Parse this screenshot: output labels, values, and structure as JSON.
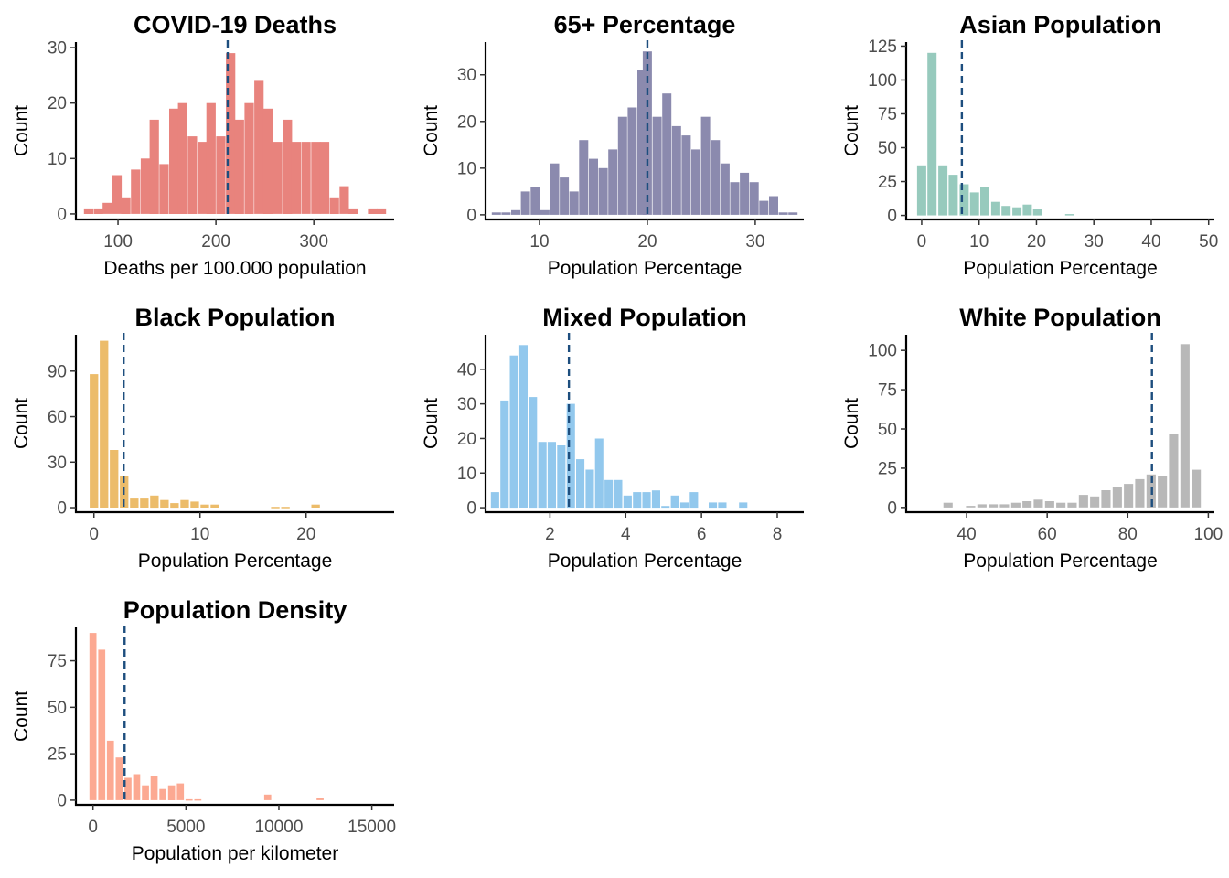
{
  "chart_data": [
    {
      "type": "bar",
      "title": "COVID-19 Deaths",
      "xlabel": "Deaths per 100.000 population",
      "ylabel": "Count",
      "color": "#E8837D",
      "xlim": [
        57,
        382
      ],
      "ylim": [
        -1,
        31
      ],
      "xticks": [
        100,
        200,
        300
      ],
      "yticks": [
        0,
        10,
        20,
        30
      ],
      "mean_line": 212,
      "bin_width": 9.5,
      "bins": [
        {
          "x": 70,
          "count": 1
        },
        {
          "x": 80,
          "count": 1
        },
        {
          "x": 89,
          "count": 2
        },
        {
          "x": 99,
          "count": 7
        },
        {
          "x": 108,
          "count": 3
        },
        {
          "x": 118,
          "count": 8
        },
        {
          "x": 128,
          "count": 10
        },
        {
          "x": 137,
          "count": 17
        },
        {
          "x": 147,
          "count": 9
        },
        {
          "x": 157,
          "count": 19
        },
        {
          "x": 166,
          "count": 20
        },
        {
          "x": 176,
          "count": 14
        },
        {
          "x": 186,
          "count": 13
        },
        {
          "x": 195,
          "count": 20
        },
        {
          "x": 205,
          "count": 14
        },
        {
          "x": 215,
          "count": 29
        },
        {
          "x": 224,
          "count": 17
        },
        {
          "x": 234,
          "count": 20
        },
        {
          "x": 244,
          "count": 24
        },
        {
          "x": 253,
          "count": 19
        },
        {
          "x": 263,
          "count": 13
        },
        {
          "x": 273,
          "count": 17
        },
        {
          "x": 282,
          "count": 13
        },
        {
          "x": 292,
          "count": 13
        },
        {
          "x": 302,
          "count": 13
        },
        {
          "x": 311,
          "count": 13
        },
        {
          "x": 321,
          "count": 3
        },
        {
          "x": 331,
          "count": 5
        },
        {
          "x": 340,
          "count": 1
        },
        {
          "x": 360,
          "count": 1
        },
        {
          "x": 369,
          "count": 1
        }
      ]
    },
    {
      "type": "bar",
      "title": "65+ Percentage",
      "xlabel": "Population Percentage",
      "ylabel": "Count",
      "color": "#8B8AAE",
      "xlim": [
        5,
        34.5
      ],
      "ylim": [
        -1,
        37
      ],
      "xticks": [
        10,
        20,
        30
      ],
      "yticks": [
        0,
        10,
        20,
        30
      ],
      "mean_line": 20,
      "bin_width": 0.85,
      "bins": [
        {
          "x": 6.0,
          "count": 0.5
        },
        {
          "x": 6.9,
          "count": 0.5
        },
        {
          "x": 7.8,
          "count": 1
        },
        {
          "x": 8.7,
          "count": 5
        },
        {
          "x": 9.6,
          "count": 6
        },
        {
          "x": 10.5,
          "count": 1
        },
        {
          "x": 11.4,
          "count": 11
        },
        {
          "x": 12.3,
          "count": 8
        },
        {
          "x": 13.2,
          "count": 5
        },
        {
          "x": 14.1,
          "count": 16
        },
        {
          "x": 15.0,
          "count": 12
        },
        {
          "x": 15.9,
          "count": 10
        },
        {
          "x": 16.8,
          "count": 14
        },
        {
          "x": 17.7,
          "count": 21
        },
        {
          "x": 18.6,
          "count": 23
        },
        {
          "x": 19.5,
          "count": 31
        },
        {
          "x": 20.0,
          "count": 35
        },
        {
          "x": 20.9,
          "count": 21
        },
        {
          "x": 21.8,
          "count": 26
        },
        {
          "x": 22.7,
          "count": 19
        },
        {
          "x": 23.6,
          "count": 17
        },
        {
          "x": 24.5,
          "count": 14
        },
        {
          "x": 25.4,
          "count": 21
        },
        {
          "x": 26.3,
          "count": 16
        },
        {
          "x": 27.2,
          "count": 11
        },
        {
          "x": 28.1,
          "count": 7
        },
        {
          "x": 29.0,
          "count": 9
        },
        {
          "x": 29.9,
          "count": 7
        },
        {
          "x": 30.8,
          "count": 3
        },
        {
          "x": 31.7,
          "count": 4
        },
        {
          "x": 32.6,
          "count": 0.5
        },
        {
          "x": 33.5,
          "count": 0.5
        }
      ]
    },
    {
      "type": "bar",
      "title": "Asian Population",
      "xlabel": "Population Percentage",
      "ylabel": "Count",
      "color": "#97CABD",
      "xlim": [
        -2.7,
        51
      ],
      "ylim": [
        -3,
        128
      ],
      "xticks": [
        0,
        10,
        20,
        30,
        40,
        50
      ],
      "yticks": [
        0,
        25,
        50,
        75,
        100,
        125
      ],
      "mean_line": 7,
      "bin_width": 1.6,
      "bins": [
        {
          "x": 0.0,
          "count": 37
        },
        {
          "x": 1.8,
          "count": 120
        },
        {
          "x": 3.7,
          "count": 37
        },
        {
          "x": 5.5,
          "count": 30
        },
        {
          "x": 7.4,
          "count": 23
        },
        {
          "x": 9.2,
          "count": 17
        },
        {
          "x": 11.0,
          "count": 21
        },
        {
          "x": 12.9,
          "count": 10
        },
        {
          "x": 14.7,
          "count": 7
        },
        {
          "x": 16.6,
          "count": 6
        },
        {
          "x": 18.4,
          "count": 8
        },
        {
          "x": 20.2,
          "count": 5
        },
        {
          "x": 25.8,
          "count": 1
        }
      ]
    },
    {
      "type": "bar",
      "title": "Black Population",
      "xlabel": "Population Percentage",
      "ylabel": "Count",
      "color": "#ECBC6A",
      "xlim": [
        -1.7,
        28.3
      ],
      "ylim": [
        -3,
        114
      ],
      "xticks": [
        0,
        10,
        20
      ],
      "yticks": [
        0,
        30,
        60,
        90
      ],
      "mean_line": 2.8,
      "bin_width": 0.8,
      "bins": [
        {
          "x": 0.0,
          "count": 88
        },
        {
          "x": 0.95,
          "count": 110
        },
        {
          "x": 1.9,
          "count": 38
        },
        {
          "x": 2.85,
          "count": 21
        },
        {
          "x": 3.8,
          "count": 6
        },
        {
          "x": 4.75,
          "count": 6
        },
        {
          "x": 5.7,
          "count": 8
        },
        {
          "x": 6.65,
          "count": 5
        },
        {
          "x": 7.6,
          "count": 3
        },
        {
          "x": 8.55,
          "count": 5
        },
        {
          "x": 9.5,
          "count": 4
        },
        {
          "x": 10.45,
          "count": 2
        },
        {
          "x": 11.4,
          "count": 2
        },
        {
          "x": 17.1,
          "count": 0.5
        },
        {
          "x": 18.05,
          "count": 0.5
        },
        {
          "x": 20.9,
          "count": 2
        }
      ]
    },
    {
      "type": "bar",
      "title": "Mixed Population",
      "xlabel": "Population Percentage",
      "ylabel": "Count",
      "color": "#92C8ED",
      "xlim": [
        0.3,
        8.7
      ],
      "ylim": [
        -1.3,
        50
      ],
      "xticks": [
        2,
        4,
        6,
        8
      ],
      "yticks": [
        0,
        10,
        20,
        30,
        40
      ],
      "mean_line": 2.5,
      "bin_width": 0.22,
      "bins": [
        {
          "x": 0.55,
          "count": 4.5
        },
        {
          "x": 0.8,
          "count": 31
        },
        {
          "x": 1.05,
          "count": 44
        },
        {
          "x": 1.3,
          "count": 47
        },
        {
          "x": 1.55,
          "count": 32
        },
        {
          "x": 1.8,
          "count": 19
        },
        {
          "x": 2.05,
          "count": 19
        },
        {
          "x": 2.3,
          "count": 18
        },
        {
          "x": 2.55,
          "count": 30
        },
        {
          "x": 2.8,
          "count": 14
        },
        {
          "x": 3.05,
          "count": 11
        },
        {
          "x": 3.3,
          "count": 20
        },
        {
          "x": 3.55,
          "count": 8
        },
        {
          "x": 3.8,
          "count": 8
        },
        {
          "x": 4.05,
          "count": 3.5
        },
        {
          "x": 4.3,
          "count": 4.5
        },
        {
          "x": 4.55,
          "count": 4.5
        },
        {
          "x": 4.8,
          "count": 5
        },
        {
          "x": 5.05,
          "count": 0.5
        },
        {
          "x": 5.3,
          "count": 3.5
        },
        {
          "x": 5.55,
          "count": 1.5
        },
        {
          "x": 5.8,
          "count": 4.5
        },
        {
          "x": 6.3,
          "count": 1.5
        },
        {
          "x": 6.55,
          "count": 1.5
        },
        {
          "x": 7.1,
          "count": 1.5
        }
      ]
    },
    {
      "type": "bar",
      "title": "White Population",
      "xlabel": "Population Percentage",
      "ylabel": "Count",
      "color": "#B8B8B8",
      "xlim": [
        25,
        101.5
      ],
      "ylim": [
        -3,
        110
      ],
      "xticks": [
        40,
        60,
        80,
        100
      ],
      "yticks": [
        0,
        25,
        50,
        75,
        100
      ],
      "mean_line": 86,
      "bin_width": 2.3,
      "bins": [
        {
          "x": 35.4,
          "count": 3
        },
        {
          "x": 41.0,
          "count": 1
        },
        {
          "x": 43.8,
          "count": 2
        },
        {
          "x": 46.6,
          "count": 2
        },
        {
          "x": 49.4,
          "count": 2
        },
        {
          "x": 52.2,
          "count": 3
        },
        {
          "x": 55.0,
          "count": 4
        },
        {
          "x": 57.8,
          "count": 5
        },
        {
          "x": 60.6,
          "count": 4
        },
        {
          "x": 63.4,
          "count": 3
        },
        {
          "x": 66.2,
          "count": 3
        },
        {
          "x": 69.0,
          "count": 8
        },
        {
          "x": 71.8,
          "count": 7
        },
        {
          "x": 74.6,
          "count": 11
        },
        {
          "x": 77.4,
          "count": 13
        },
        {
          "x": 80.2,
          "count": 15
        },
        {
          "x": 83.0,
          "count": 18
        },
        {
          "x": 85.8,
          "count": 21
        },
        {
          "x": 88.6,
          "count": 20
        },
        {
          "x": 91.4,
          "count": 47
        },
        {
          "x": 94.2,
          "count": 104
        },
        {
          "x": 97.0,
          "count": 24
        }
      ]
    },
    {
      "type": "bar",
      "title": "Population Density",
      "xlabel": "Population per kilometer",
      "ylabel": "Count",
      "color": "#FCA992",
      "xlim": [
        -920,
        16200
      ],
      "ylim": [
        -2.5,
        93
      ],
      "xticks": [
        0,
        5000,
        10000,
        15000
      ],
      "yticks": [
        0,
        25,
        50,
        75
      ],
      "mean_line": 1700,
      "bin_width": 380,
      "bins": [
        {
          "x": 0,
          "count": 90
        },
        {
          "x": 470,
          "count": 81
        },
        {
          "x": 940,
          "count": 32
        },
        {
          "x": 1410,
          "count": 23
        },
        {
          "x": 1880,
          "count": 12
        },
        {
          "x": 2350,
          "count": 14
        },
        {
          "x": 2820,
          "count": 8
        },
        {
          "x": 3290,
          "count": 13
        },
        {
          "x": 3760,
          "count": 6
        },
        {
          "x": 4230,
          "count": 8
        },
        {
          "x": 4700,
          "count": 9
        },
        {
          "x": 5170,
          "count": 0.5
        },
        {
          "x": 5640,
          "count": 0.5
        },
        {
          "x": 9400,
          "count": 3
        },
        {
          "x": 12220,
          "count": 1
        }
      ]
    }
  ]
}
